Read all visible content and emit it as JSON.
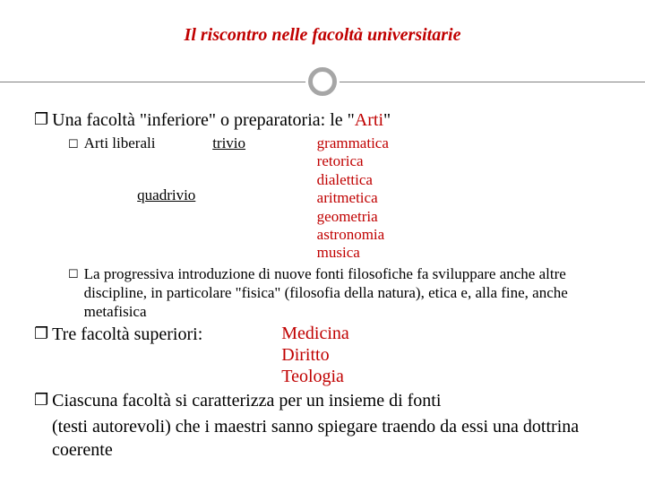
{
  "title": "Il riscontro nelle facoltà universitarie",
  "colors": {
    "accent": "#c00000",
    "divider": "#a6a6a6",
    "text": "#000000",
    "background": "#ffffff"
  },
  "main1": {
    "pre": "Una facoltà \"inferiore\" o preparatoria: le \"",
    "accent": "Arti",
    "post": "\""
  },
  "arti": {
    "label": "Arti liberali",
    "trivio": "trivio",
    "quadrivio": "quadrivio",
    "list": {
      "i0": "grammatica",
      "i1": "retorica",
      "i2": "dialettica",
      "i3": "aritmetica",
      "i4": "geometria",
      "i5": "astronomia",
      "i6": "musica"
    }
  },
  "subpara": "La progressiva introduzione di nuove fonti filosofiche fa sviluppare anche altre discipline, in particolare \"fisica\" (filosofia della natura), etica e, alla fine, anche metafisica",
  "main2": {
    "label": "Tre facoltà superiori:",
    "list": {
      "i0": "Medicina",
      "i1": "Diritto",
      "i2": "Teologia"
    }
  },
  "main3": {
    "line1": "Ciascuna facoltà si caratterizza per un insieme di fonti",
    "line2": "(testi autorevoli) che i maestri sanno spiegare traendo da essi una dottrina coerente"
  }
}
